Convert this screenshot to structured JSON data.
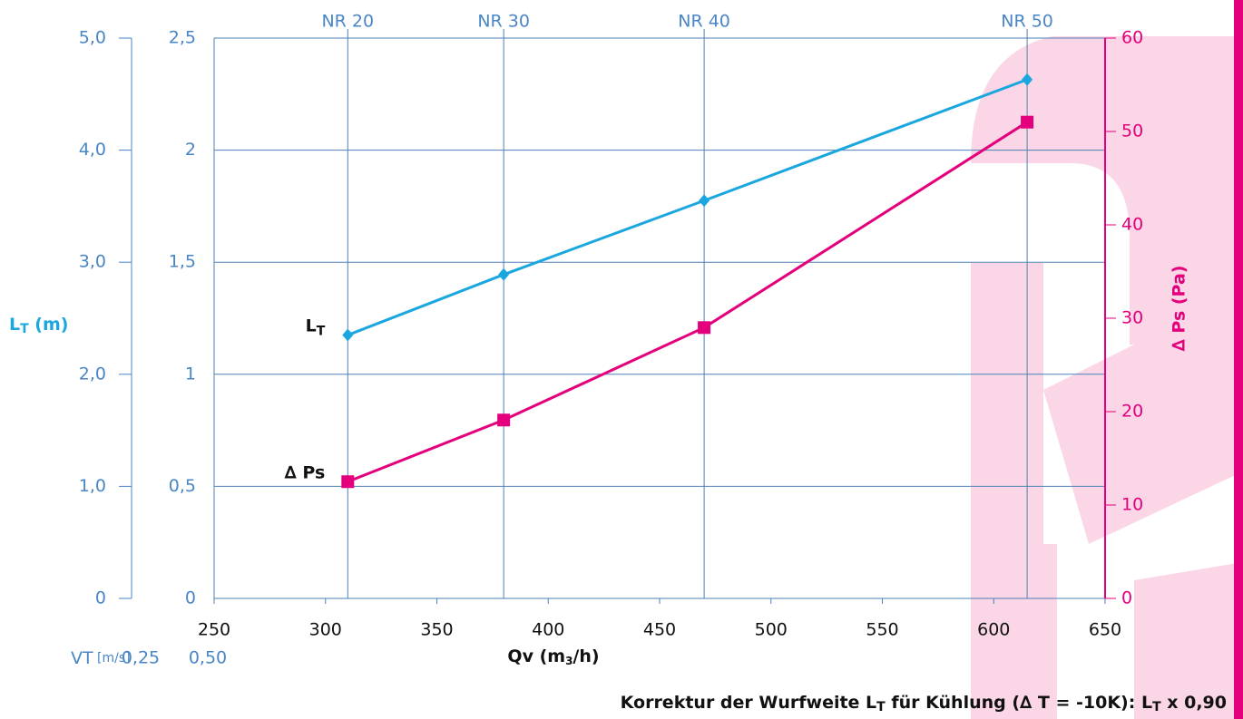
{
  "chart_data": {
    "type": "line",
    "top_labels": [
      "NR 20",
      "NR 30",
      "NR 40",
      "NR 50"
    ],
    "x": [
      310,
      380,
      470,
      615
    ],
    "xlim": [
      250,
      650
    ],
    "xticks": [
      250,
      300,
      350,
      400,
      450,
      500,
      550,
      600,
      650
    ],
    "x_label": [
      "Qv (m",
      "3",
      "/h)"
    ],
    "ylim": [
      0,
      5
    ],
    "yticks": [
      0,
      {
        "value": 1,
        "label": "1,0"
      },
      {
        "value": 2,
        "label": "2,0"
      },
      {
        "value": 3,
        "label": "3,0"
      },
      {
        "value": 4,
        "label": "4,0"
      },
      {
        "value": 5,
        "label": "5,0"
      }
    ],
    "y_label": [
      "L",
      "T",
      " (m)"
    ],
    "inner_ylim": [
      0,
      2.5
    ],
    "inner_yticks": [
      0,
      {
        "value": 0.5,
        "label": "0,5"
      },
      1,
      {
        "value": 1.5,
        "label": "1,5"
      },
      2,
      {
        "value": 2.5,
        "label": "2,5"
      }
    ],
    "y2lim": [
      0,
      60
    ],
    "y2ticks": [
      0,
      10,
      20,
      30,
      40,
      50,
      60
    ],
    "y2_label": "∆ Ps (Pa)",
    "grid": true,
    "series": [
      {
        "name": "L",
        "name_sub": "T",
        "color": "#1aa7e0",
        "marker": "diamond",
        "values": [
          2.35,
          2.89,
          3.55,
          4.63
        ]
      },
      {
        "name": "∆ Ps",
        "color": "#e4007c",
        "marker": "square",
        "axis": "y2",
        "values": [
          12.5,
          19.1,
          29.0,
          51.0
        ]
      }
    ],
    "vt_label": [
      "VT",
      " [m/s]"
    ],
    "vt_values": [
      "0,25",
      "0,50"
    ],
    "footer": [
      "Korrektur der Wurfweite L",
      "T",
      " für Kühlung (∆ T = -10K): L",
      "T",
      " x 0,90"
    ]
  }
}
